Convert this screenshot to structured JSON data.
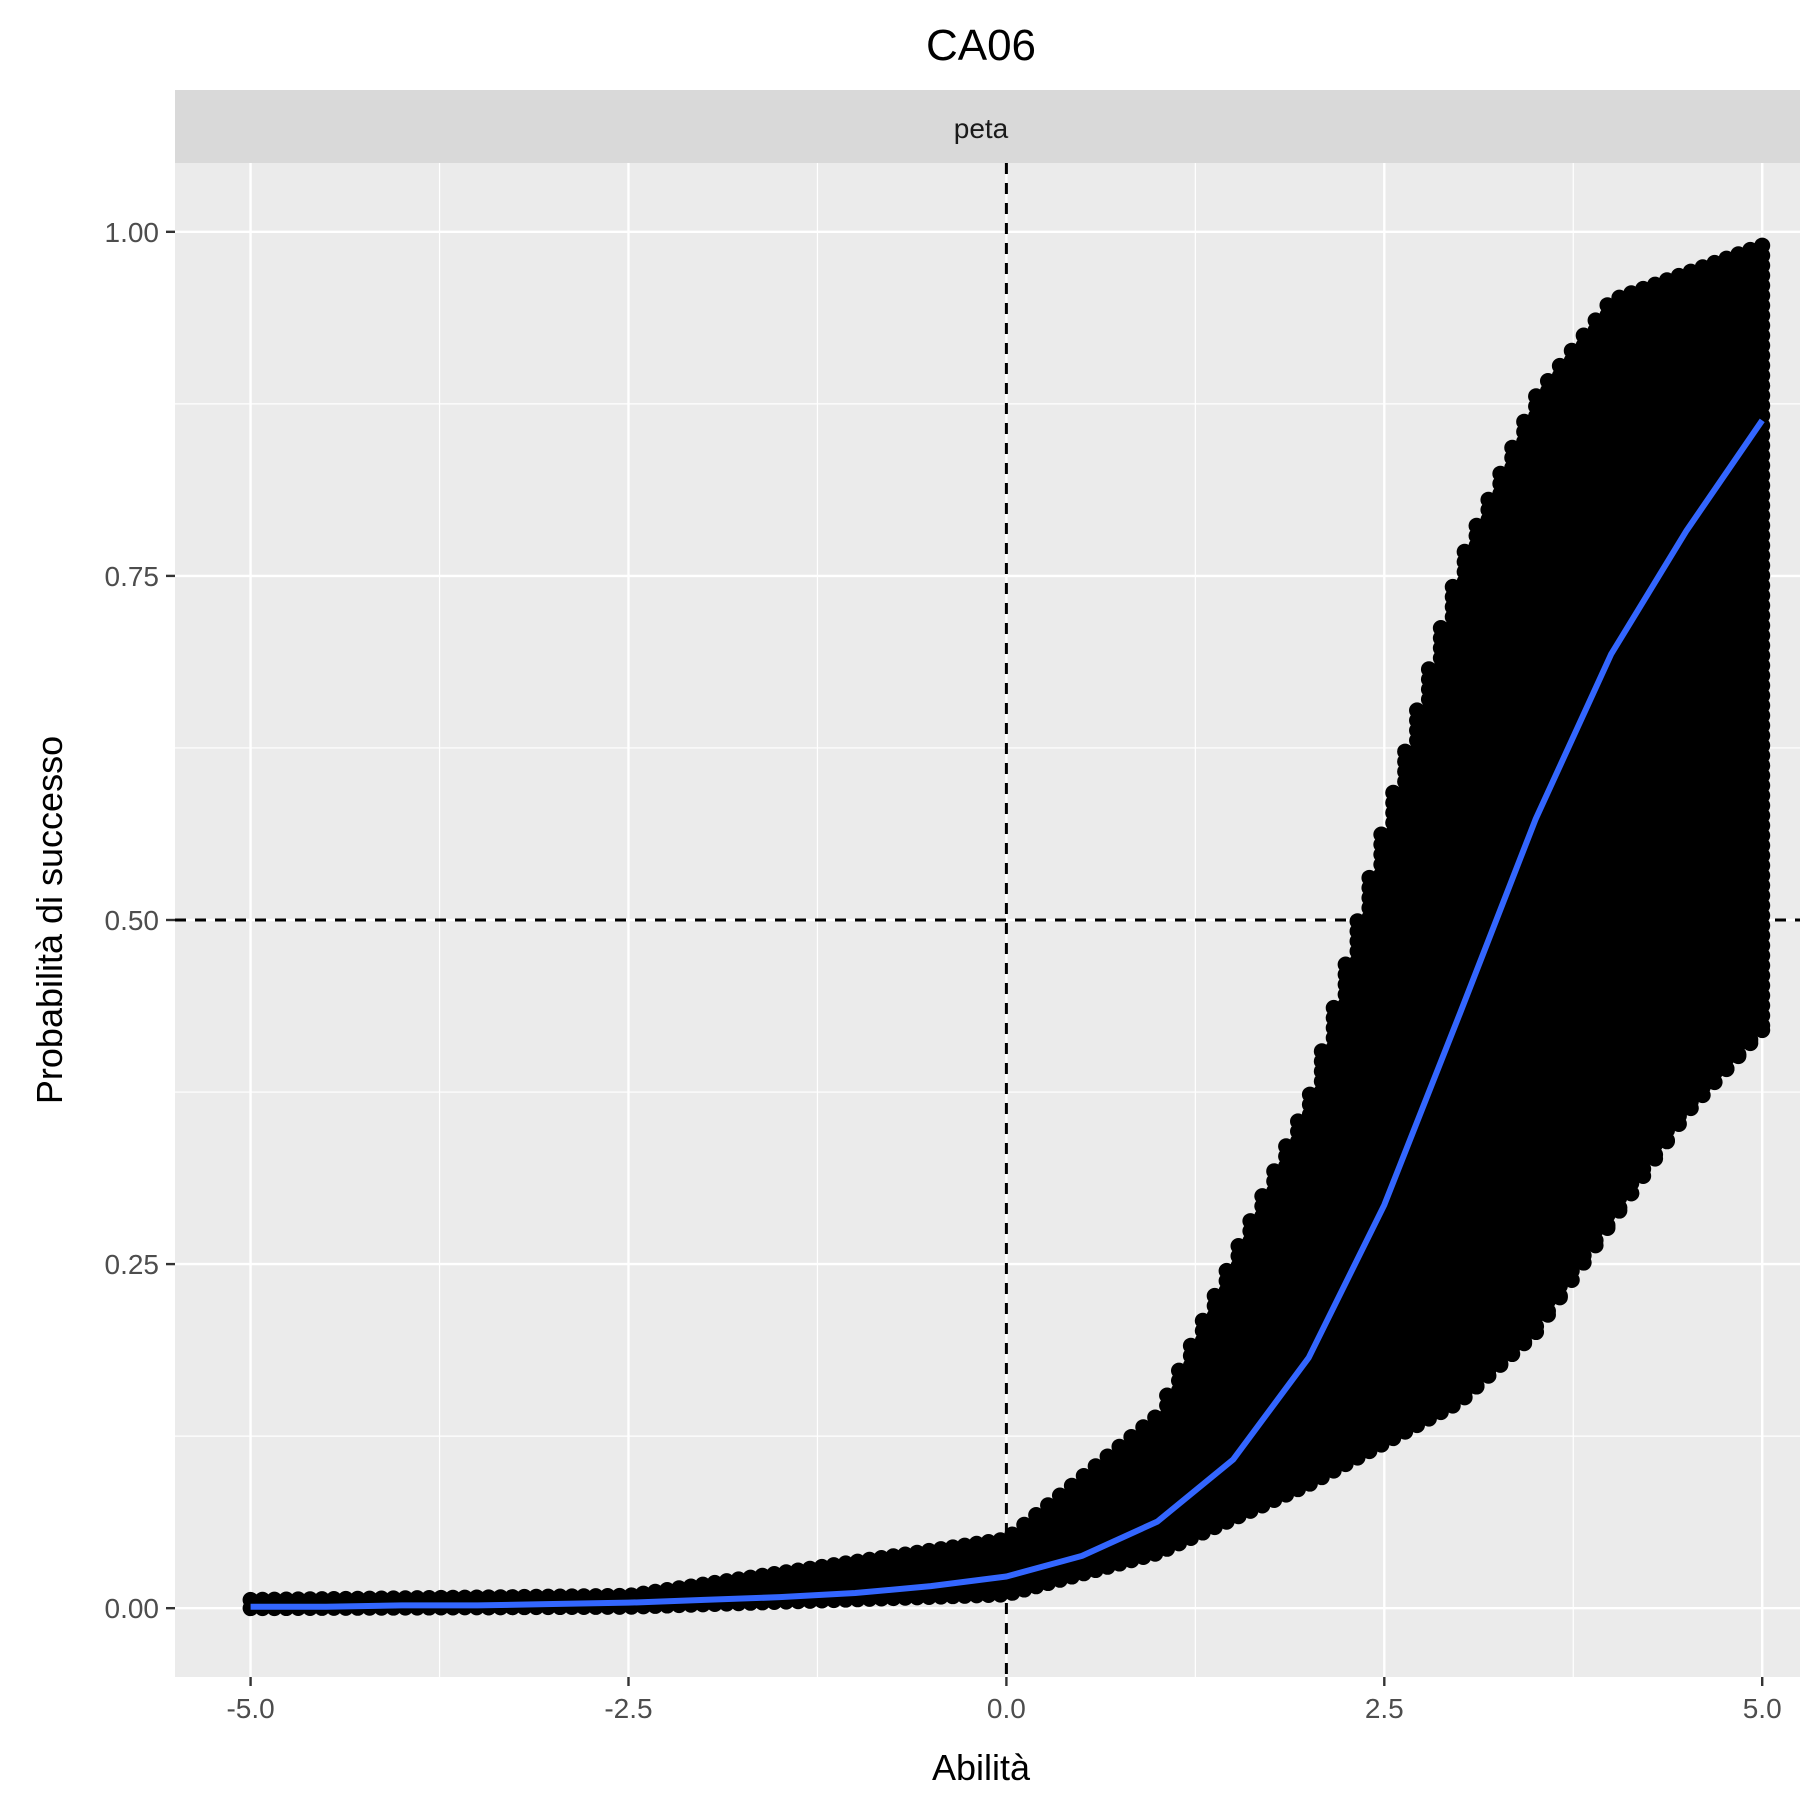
{
  "chart_data": {
    "type": "scatter",
    "title": "CA06",
    "facet_label": "peta",
    "xlabel": "Abilità",
    "ylabel": "Probabilità di successo",
    "xlim": [
      -5.5,
      5.25
    ],
    "ylim": [
      -0.05,
      1.05
    ],
    "x_ticks": [
      -5.0,
      -2.5,
      0.0,
      2.5,
      5.0
    ],
    "x_tick_labels": [
      "-5.0",
      "-2.5",
      "0.0",
      "2.5",
      "5.0"
    ],
    "y_ticks": [
      0.0,
      0.25,
      0.5,
      0.75,
      1.0
    ],
    "y_tick_labels": [
      "0.00",
      "0.25",
      "0.50",
      "0.75",
      "1.00"
    ],
    "reference_lines": {
      "vertical_x": 0.0,
      "horizontal_y": 0.5,
      "style": "dashed"
    },
    "grid": true,
    "legend": "none",
    "point_cloud": {
      "x_range": [
        -5.0,
        5.0
      ],
      "description_curves": {
        "upper": [
          [
            -5.0,
            0.006
          ],
          [
            -2.5,
            0.009
          ],
          [
            0.0,
            0.05
          ],
          [
            1.0,
            0.14
          ],
          [
            2.0,
            0.37
          ],
          [
            2.5,
            0.57
          ],
          [
            3.0,
            0.76
          ],
          [
            3.5,
            0.88
          ],
          [
            4.0,
            0.95
          ],
          [
            5.0,
            0.99
          ]
        ],
        "lower": [
          [
            -5.0,
            0.0
          ],
          [
            -2.5,
            0.001
          ],
          [
            0.0,
            0.01
          ],
          [
            1.0,
            0.04
          ],
          [
            2.0,
            0.09
          ],
          [
            3.0,
            0.15
          ],
          [
            3.5,
            0.2
          ],
          [
            4.0,
            0.28
          ],
          [
            4.5,
            0.36
          ],
          [
            5.0,
            0.42
          ]
        ]
      }
    },
    "series": [
      {
        "type": "line",
        "x": [
          -5.0,
          -4.5,
          -4.0,
          -3.5,
          -3.0,
          -2.5,
          -2.0,
          -1.5,
          -1.0,
          -0.5,
          0.0,
          0.5,
          1.0,
          1.5,
          2.0,
          2.5,
          3.0,
          3.5,
          4.0,
          4.5,
          5.0
        ],
        "values": [
          0.001,
          0.001,
          0.002,
          0.002,
          0.003,
          0.004,
          0.006,
          0.008,
          0.011,
          0.016,
          0.023,
          0.038,
          0.063,
          0.108,
          0.182,
          0.293,
          0.432,
          0.573,
          0.693,
          0.783,
          0.863
        ]
      }
    ],
    "colors": {
      "panel_background": "#ebebeb",
      "grid": "#ffffff",
      "strip_background": "#d9d9d9",
      "points": "#000000",
      "curve": "#3366ff",
      "reference": "#000000"
    }
  }
}
